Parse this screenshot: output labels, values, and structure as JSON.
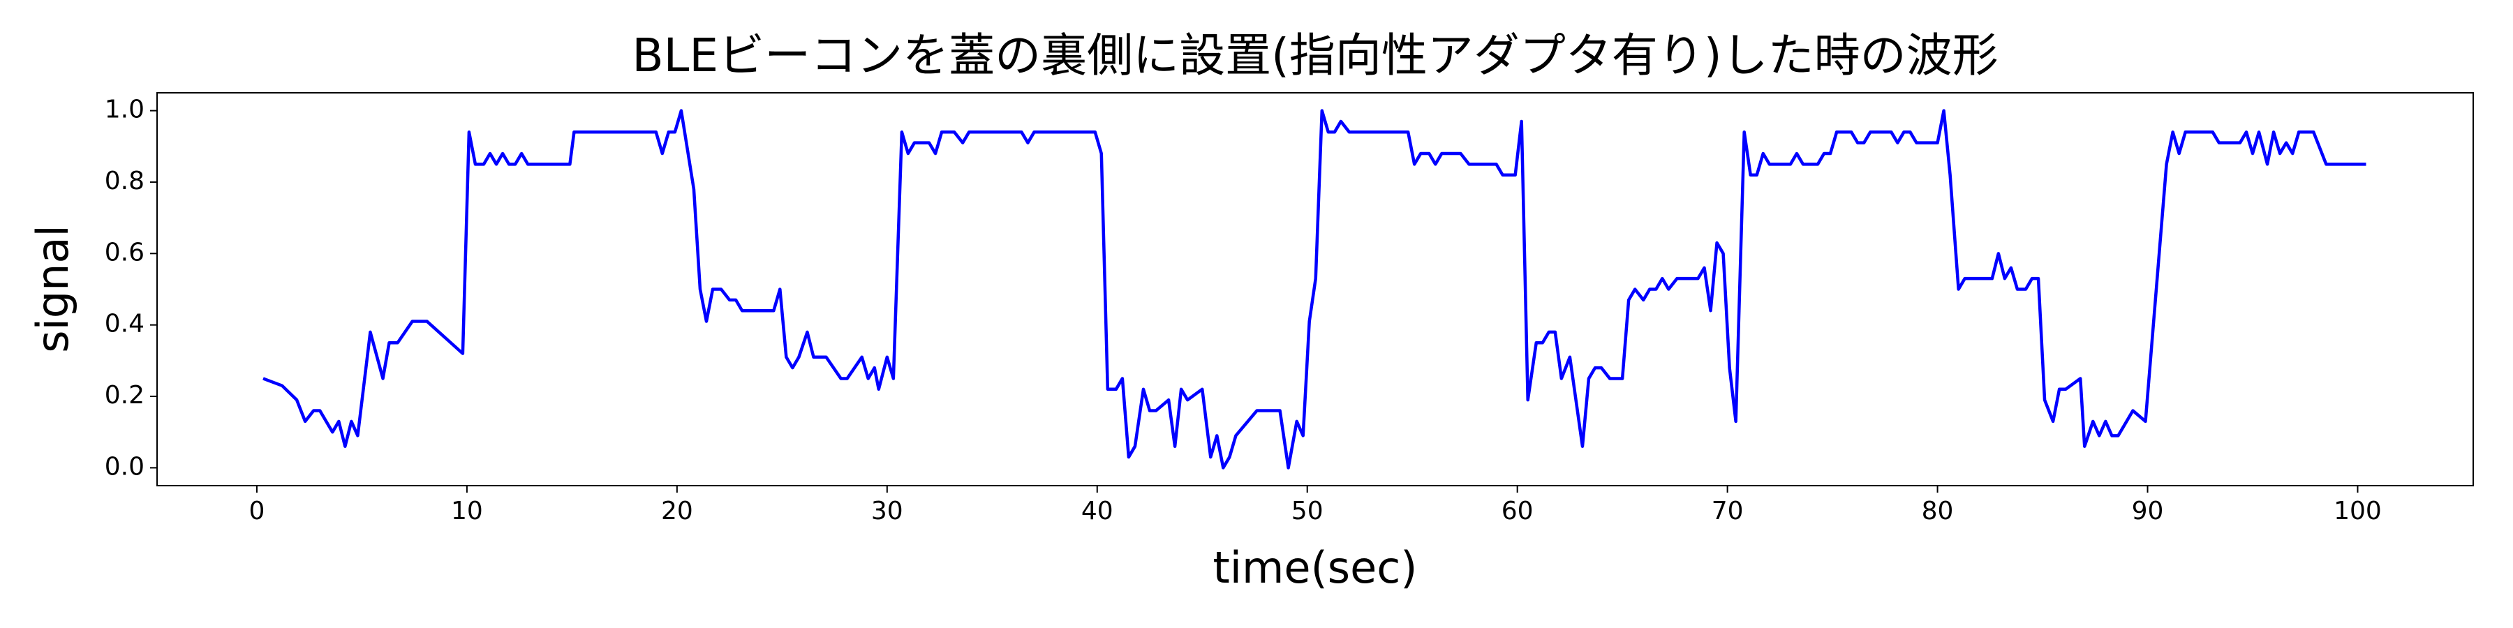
{
  "chart_data": {
    "type": "line",
    "title": "BLEビーコンを蓋の裏側に設置(指向性アダプタ有り)した時の波形",
    "x_label": "time(sec)",
    "y_label": "signal",
    "color": "#0000ff",
    "xlim": [
      -4.75,
      105.5
    ],
    "ylim": [
      -0.05,
      1.05
    ],
    "xticks": [
      0,
      10,
      20,
      30,
      40,
      50,
      60,
      70,
      80,
      90,
      100
    ],
    "yticks": [
      {
        "value": 0,
        "label": "0.0"
      },
      {
        "value": 0.2,
        "label": "0.2"
      },
      {
        "value": 0.4,
        "label": "0.4"
      },
      {
        "value": 0.6,
        "label": "0.6"
      },
      {
        "value": 0.8,
        "label": "0.8"
      },
      {
        "value": 1,
        "label": "1.0"
      }
    ],
    "grid": false,
    "x": [
      0.3,
      1.2,
      1.9,
      2.3,
      2.7,
      3.0,
      3.6,
      3.9,
      4.2,
      4.5,
      4.8,
      5.4,
      6.0,
      6.3,
      6.7,
      7.4,
      8.1,
      9.8,
      10.1,
      10.4,
      10.8,
      11.1,
      11.4,
      11.7,
      12.0,
      12.3,
      12.6,
      12.9,
      14.9,
      15.1,
      19.0,
      19.3,
      19.6,
      19.9,
      20.2,
      20.8,
      21.1,
      21.4,
      21.7,
      22.1,
      22.5,
      22.8,
      23.1,
      24.6,
      24.9,
      25.2,
      25.5,
      25.8,
      26.2,
      26.5,
      27.1,
      27.8,
      28.1,
      28.8,
      29.1,
      29.4,
      29.6,
      30.0,
      30.3,
      30.7,
      31.0,
      31.3,
      32.0,
      32.3,
      32.6,
      33.2,
      33.6,
      33.9,
      36.4,
      36.7,
      37.0,
      39.9,
      40.2,
      40.5,
      40.9,
      41.2,
      41.5,
      41.8,
      42.2,
      42.5,
      42.8,
      43.4,
      43.7,
      44.0,
      44.3,
      45.0,
      45.4,
      45.7,
      46.0,
      46.3,
      46.6,
      47.6,
      48.7,
      49.1,
      49.5,
      49.8,
      50.1,
      50.4,
      50.7,
      51.0,
      51.3,
      51.6,
      52.0,
      54.8,
      55.1,
      55.4,
      55.8,
      56.1,
      56.4,
      57.3,
      57.7,
      59.0,
      59.3,
      59.9,
      60.2,
      60.5,
      60.9,
      61.2,
      61.5,
      61.8,
      62.1,
      62.5,
      63.1,
      63.4,
      63.7,
      64.0,
      64.4,
      65.0,
      65.3,
      65.6,
      66.0,
      66.3,
      66.6,
      66.9,
      67.2,
      67.6,
      68.6,
      68.9,
      69.2,
      69.5,
      69.8,
      70.1,
      70.4,
      70.8,
      71.1,
      71.4,
      71.7,
      72.0,
      73.0,
      73.3,
      73.6,
      74.3,
      74.6,
      74.9,
      75.2,
      75.9,
      76.2,
      76.5,
      76.8,
      77.8,
      78.1,
      78.4,
      78.7,
      79.0,
      80.0,
      80.3,
      80.6,
      81.0,
      81.3,
      82.6,
      82.9,
      83.2,
      83.5,
      83.8,
      84.2,
      84.5,
      84.8,
      85.1,
      85.5,
      85.8,
      86.1,
      86.8,
      87.0,
      87.4,
      87.7,
      88.0,
      88.3,
      88.6,
      89.3,
      89.9,
      90.9,
      91.2,
      91.5,
      91.8,
      93.1,
      93.4,
      94.4,
      94.7,
      95.0,
      95.3,
      95.7,
      96.0,
      96.3,
      96.6,
      96.9,
      97.2,
      97.9,
      98.5,
      100.4
    ],
    "values": [
      0.25,
      0.23,
      0.19,
      0.13,
      0.16,
      0.16,
      0.1,
      0.13,
      0.06,
      0.13,
      0.09,
      0.38,
      0.25,
      0.35,
      0.35,
      0.41,
      0.41,
      0.32,
      0.94,
      0.85,
      0.85,
      0.88,
      0.85,
      0.88,
      0.85,
      0.85,
      0.88,
      0.85,
      0.85,
      0.94,
      0.94,
      0.88,
      0.94,
      0.94,
      1.0,
      0.78,
      0.5,
      0.41,
      0.5,
      0.5,
      0.47,
      0.47,
      0.44,
      0.44,
      0.5,
      0.31,
      0.28,
      0.31,
      0.38,
      0.31,
      0.31,
      0.25,
      0.25,
      0.31,
      0.25,
      0.28,
      0.22,
      0.31,
      0.25,
      0.94,
      0.88,
      0.91,
      0.91,
      0.88,
      0.94,
      0.94,
      0.91,
      0.94,
      0.94,
      0.91,
      0.94,
      0.94,
      0.88,
      0.22,
      0.22,
      0.25,
      0.03,
      0.06,
      0.22,
      0.16,
      0.16,
      0.19,
      0.06,
      0.22,
      0.19,
      0.22,
      0.03,
      0.09,
      0.0,
      0.03,
      0.09,
      0.16,
      0.16,
      0.0,
      0.13,
      0.09,
      0.41,
      0.53,
      1.0,
      0.94,
      0.94,
      0.97,
      0.94,
      0.94,
      0.85,
      0.88,
      0.88,
      0.85,
      0.88,
      0.88,
      0.85,
      0.85,
      0.82,
      0.82,
      0.97,
      0.19,
      0.35,
      0.35,
      0.38,
      0.38,
      0.25,
      0.31,
      0.06,
      0.25,
      0.28,
      0.28,
      0.25,
      0.25,
      0.47,
      0.5,
      0.47,
      0.5,
      0.5,
      0.53,
      0.5,
      0.53,
      0.53,
      0.56,
      0.44,
      0.63,
      0.6,
      0.28,
      0.13,
      0.94,
      0.82,
      0.82,
      0.88,
      0.85,
      0.85,
      0.88,
      0.85,
      0.85,
      0.88,
      0.88,
      0.94,
      0.94,
      0.91,
      0.91,
      0.94,
      0.94,
      0.91,
      0.94,
      0.94,
      0.91,
      0.91,
      1.0,
      0.82,
      0.5,
      0.53,
      0.53,
      0.6,
      0.53,
      0.56,
      0.5,
      0.5,
      0.53,
      0.53,
      0.19,
      0.13,
      0.22,
      0.22,
      0.25,
      0.06,
      0.13,
      0.09,
      0.13,
      0.09,
      0.09,
      0.16,
      0.13,
      0.85,
      0.94,
      0.88,
      0.94,
      0.94,
      0.91,
      0.91,
      0.94,
      0.88,
      0.94,
      0.85,
      0.94,
      0.88,
      0.91,
      0.88,
      0.94,
      0.94,
      0.85,
      0.85
    ]
  }
}
